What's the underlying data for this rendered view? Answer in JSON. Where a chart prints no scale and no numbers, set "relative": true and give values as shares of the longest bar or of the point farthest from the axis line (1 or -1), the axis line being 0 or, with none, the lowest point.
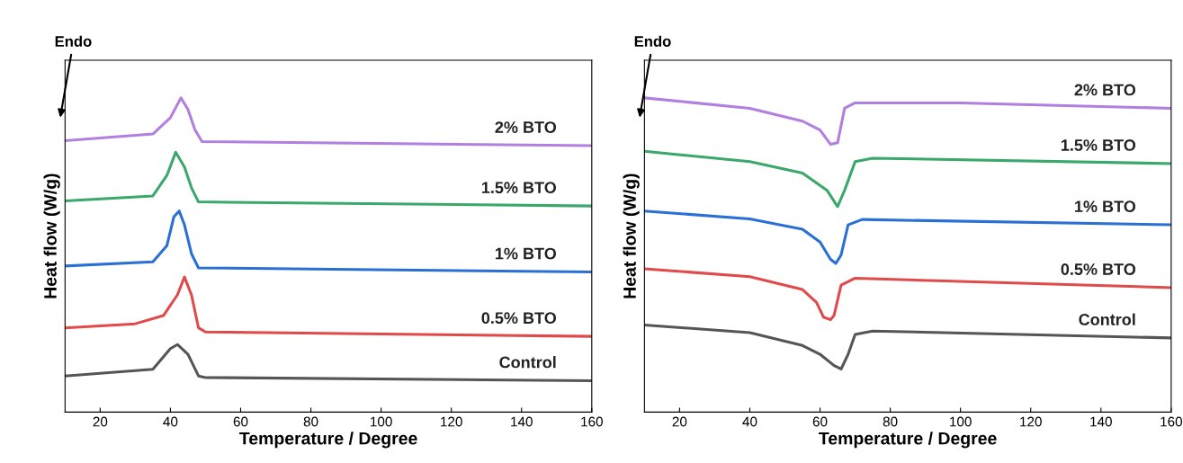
{
  "chart_data": [
    {
      "type": "line",
      "relative": true,
      "xlabel": "Temperature / Degree",
      "ylabel": "Heat flow (W/g)",
      "annotations": [
        "Endo"
      ],
      "xlim": [
        10,
        160
      ],
      "xticks": [
        20,
        40,
        60,
        80,
        100,
        120,
        140,
        160
      ],
      "legend": false,
      "grid": false,
      "marker": "none",
      "line_style": "solid",
      "series": [
        {
          "name": "Control",
          "color": "#555555",
          "x": [
            10,
            35,
            40,
            42,
            45,
            48,
            50,
            160
          ],
          "values": [
            0.115,
            0.136,
            0.202,
            0.215,
            0.184,
            0.115,
            0.11,
            0.1
          ]
        },
        {
          "name": "0.5% BTO",
          "color": "#e04a4a",
          "x": [
            10,
            30,
            38,
            42,
            44,
            46,
            48,
            50,
            160
          ],
          "values": [
            0.268,
            0.281,
            0.307,
            0.373,
            0.43,
            0.373,
            0.268,
            0.255,
            0.241
          ]
        },
        {
          "name": "1% BTO",
          "color": "#2a6fd6",
          "x": [
            10,
            35,
            39,
            41,
            42.5,
            44,
            46,
            48,
            160
          ],
          "values": [
            0.465,
            0.478,
            0.53,
            0.622,
            0.64,
            0.596,
            0.504,
            0.459,
            0.446
          ]
        },
        {
          "name": "1.5% BTO",
          "color": "#3aa86b",
          "x": [
            10,
            35,
            39,
            41.5,
            44,
            46,
            48,
            160
          ],
          "values": [
            0.672,
            0.688,
            0.753,
            0.827,
            0.78,
            0.714,
            0.669,
            0.656
          ]
        },
        {
          "name": "2% BTO",
          "color": "#b07fe0",
          "x": [
            10,
            35,
            40,
            43,
            45,
            47,
            49,
            160
          ],
          "values": [
            0.864,
            0.885,
            0.937,
            1,
            0.963,
            0.898,
            0.861,
            0.848
          ]
        }
      ]
    },
    {
      "type": "line",
      "relative": true,
      "xlabel": "Temperature / Degree",
      "ylabel": "Heat flow (W/g)",
      "annotations": [
        "Endo"
      ],
      "xlim": [
        10,
        160
      ],
      "xticks": [
        20,
        40,
        60,
        80,
        100,
        120,
        140,
        160
      ],
      "legend": false,
      "grid": false,
      "marker": "none",
      "line_style": "solid",
      "series": [
        {
          "name": "Control",
          "color": "#555555",
          "x": [
            10,
            40,
            55,
            60,
            64,
            66,
            68,
            70,
            75,
            160
          ],
          "values": [
            0.277,
            0.253,
            0.212,
            0.184,
            0.148,
            0.137,
            0.184,
            0.247,
            0.258,
            0.236
          ]
        },
        {
          "name": "0.5% BTO",
          "color": "#e04a4a",
          "x": [
            10,
            40,
            55,
            59,
            61,
            63,
            64,
            66,
            70,
            160
          ],
          "values": [
            0.456,
            0.431,
            0.39,
            0.349,
            0.302,
            0.294,
            0.308,
            0.404,
            0.426,
            0.396
          ]
        },
        {
          "name": "1% BTO",
          "color": "#2a6fd6",
          "x": [
            10,
            40,
            55,
            60,
            63,
            64.5,
            66,
            68,
            72,
            160
          ],
          "values": [
            0.64,
            0.615,
            0.582,
            0.541,
            0.486,
            0.473,
            0.5,
            0.596,
            0.613,
            0.596
          ]
        },
        {
          "name": "1.5% BTO",
          "color": "#3aa86b",
          "x": [
            10,
            40,
            55,
            62,
            65,
            67,
            70,
            75,
            160
          ],
          "values": [
            0.83,
            0.797,
            0.761,
            0.706,
            0.654,
            0.706,
            0.797,
            0.808,
            0.791
          ]
        },
        {
          "name": "2% BTO",
          "color": "#b07fe0",
          "x": [
            10,
            40,
            55,
            60,
            63,
            65,
            67,
            70,
            100,
            160
          ],
          "values": [
            1,
            0.967,
            0.926,
            0.898,
            0.852,
            0.857,
            0.967,
            0.984,
            0.984,
            0.967
          ]
        }
      ]
    }
  ]
}
